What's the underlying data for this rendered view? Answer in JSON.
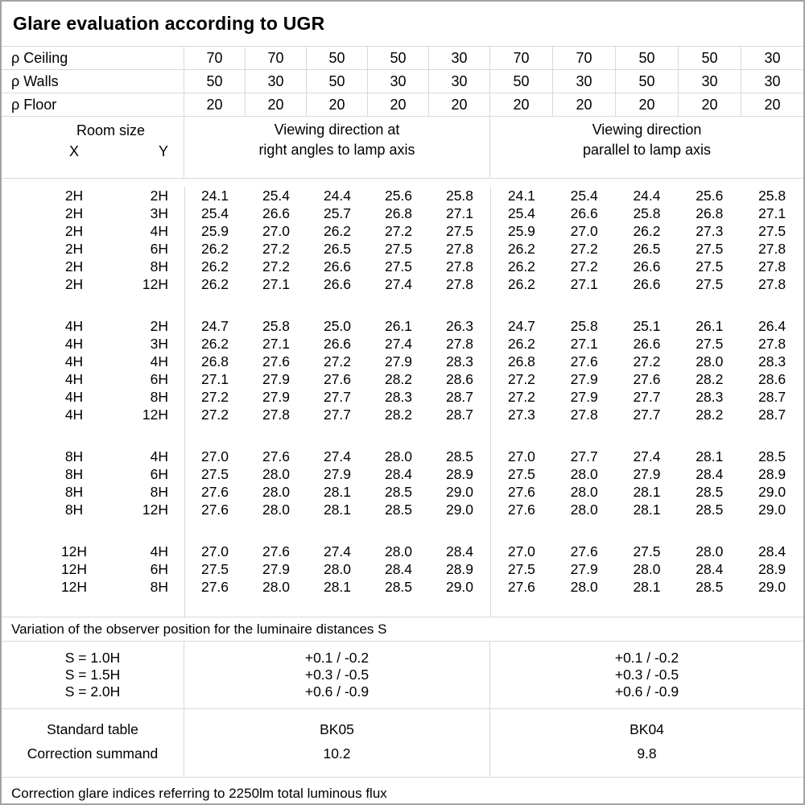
{
  "title": "Glare evaluation according to UGR",
  "colors": {
    "outer_border": "#a3a3a3",
    "grid_line": "#d9d9d9",
    "text": "#000000",
    "background": "#ffffff"
  },
  "reflectances": {
    "rows": [
      {
        "label": "ρ Ceiling",
        "values": [
          "70",
          "70",
          "50",
          "50",
          "30",
          "70",
          "70",
          "50",
          "50",
          "30"
        ]
      },
      {
        "label": "ρ Walls",
        "values": [
          "50",
          "30",
          "50",
          "30",
          "30",
          "50",
          "30",
          "50",
          "30",
          "30"
        ]
      },
      {
        "label": "ρ Floor",
        "values": [
          "20",
          "20",
          "20",
          "20",
          "20",
          "20",
          "20",
          "20",
          "20",
          "20"
        ]
      }
    ]
  },
  "header": {
    "room_size": "Room size",
    "x": "X",
    "y": "Y",
    "viewing_right_angles": {
      "line1": "Viewing direction at",
      "line2": "right angles to lamp axis"
    },
    "viewing_parallel": {
      "line1": "Viewing direction",
      "line2": "parallel to lamp axis"
    }
  },
  "ugr_table": {
    "groups": [
      {
        "rows": [
          {
            "x": "2H",
            "y": "2H",
            "values": [
              "24.1",
              "25.4",
              "24.4",
              "25.6",
              "25.8",
              "24.1",
              "25.4",
              "24.4",
              "25.6",
              "25.8"
            ]
          },
          {
            "x": "2H",
            "y": "3H",
            "values": [
              "25.4",
              "26.6",
              "25.7",
              "26.8",
              "27.1",
              "25.4",
              "26.6",
              "25.8",
              "26.8",
              "27.1"
            ]
          },
          {
            "x": "2H",
            "y": "4H",
            "values": [
              "25.9",
              "27.0",
              "26.2",
              "27.2",
              "27.5",
              "25.9",
              "27.0",
              "26.2",
              "27.3",
              "27.5"
            ]
          },
          {
            "x": "2H",
            "y": "6H",
            "values": [
              "26.2",
              "27.2",
              "26.5",
              "27.5",
              "27.8",
              "26.2",
              "27.2",
              "26.5",
              "27.5",
              "27.8"
            ]
          },
          {
            "x": "2H",
            "y": "8H",
            "values": [
              "26.2",
              "27.2",
              "26.6",
              "27.5",
              "27.8",
              "26.2",
              "27.2",
              "26.6",
              "27.5",
              "27.8"
            ]
          },
          {
            "x": "2H",
            "y": "12H",
            "values": [
              "26.2",
              "27.1",
              "26.6",
              "27.4",
              "27.8",
              "26.2",
              "27.1",
              "26.6",
              "27.5",
              "27.8"
            ]
          }
        ]
      },
      {
        "rows": [
          {
            "x": "4H",
            "y": "2H",
            "values": [
              "24.7",
              "25.8",
              "25.0",
              "26.1",
              "26.3",
              "24.7",
              "25.8",
              "25.1",
              "26.1",
              "26.4"
            ]
          },
          {
            "x": "4H",
            "y": "3H",
            "values": [
              "26.2",
              "27.1",
              "26.6",
              "27.4",
              "27.8",
              "26.2",
              "27.1",
              "26.6",
              "27.5",
              "27.8"
            ]
          },
          {
            "x": "4H",
            "y": "4H",
            "values": [
              "26.8",
              "27.6",
              "27.2",
              "27.9",
              "28.3",
              "26.8",
              "27.6",
              "27.2",
              "28.0",
              "28.3"
            ]
          },
          {
            "x": "4H",
            "y": "6H",
            "values": [
              "27.1",
              "27.9",
              "27.6",
              "28.2",
              "28.6",
              "27.2",
              "27.9",
              "27.6",
              "28.2",
              "28.6"
            ]
          },
          {
            "x": "4H",
            "y": "8H",
            "values": [
              "27.2",
              "27.9",
              "27.7",
              "28.3",
              "28.7",
              "27.2",
              "27.9",
              "27.7",
              "28.3",
              "28.7"
            ]
          },
          {
            "x": "4H",
            "y": "12H",
            "values": [
              "27.2",
              "27.8",
              "27.7",
              "28.2",
              "28.7",
              "27.3",
              "27.8",
              "27.7",
              "28.2",
              "28.7"
            ]
          }
        ]
      },
      {
        "rows": [
          {
            "x": "8H",
            "y": "4H",
            "values": [
              "27.0",
              "27.6",
              "27.4",
              "28.0",
              "28.5",
              "27.0",
              "27.7",
              "27.4",
              "28.1",
              "28.5"
            ]
          },
          {
            "x": "8H",
            "y": "6H",
            "values": [
              "27.5",
              "28.0",
              "27.9",
              "28.4",
              "28.9",
              "27.5",
              "28.0",
              "27.9",
              "28.4",
              "28.9"
            ]
          },
          {
            "x": "8H",
            "y": "8H",
            "values": [
              "27.6",
              "28.0",
              "28.1",
              "28.5",
              "29.0",
              "27.6",
              "28.0",
              "28.1",
              "28.5",
              "29.0"
            ]
          },
          {
            "x": "8H",
            "y": "12H",
            "values": [
              "27.6",
              "28.0",
              "28.1",
              "28.5",
              "29.0",
              "27.6",
              "28.0",
              "28.1",
              "28.5",
              "29.0"
            ]
          }
        ]
      },
      {
        "rows": [
          {
            "x": "12H",
            "y": "4H",
            "values": [
              "27.0",
              "27.6",
              "27.4",
              "28.0",
              "28.4",
              "27.0",
              "27.6",
              "27.5",
              "28.0",
              "28.4"
            ]
          },
          {
            "x": "12H",
            "y": "6H",
            "values": [
              "27.5",
              "27.9",
              "28.0",
              "28.4",
              "28.9",
              "27.5",
              "27.9",
              "28.0",
              "28.4",
              "28.9"
            ]
          },
          {
            "x": "12H",
            "y": "8H",
            "values": [
              "27.6",
              "28.0",
              "28.1",
              "28.5",
              "29.0",
              "27.6",
              "28.0",
              "28.1",
              "28.5",
              "29.0"
            ]
          }
        ]
      }
    ]
  },
  "s_variation": {
    "note": "Variation of the observer position for the luminaire distances S",
    "rows": [
      {
        "label": "S = 1.0H",
        "right_angles": "+0.1 / -0.2",
        "parallel": "+0.1 / -0.2"
      },
      {
        "label": "S = 1.5H",
        "right_angles": "+0.3 / -0.5",
        "parallel": "+0.3 / -0.5"
      },
      {
        "label": "S = 2.0H",
        "right_angles": "+0.6 / -0.9",
        "parallel": "+0.6 / -0.9"
      }
    ]
  },
  "standard": {
    "table_label": "Standard table",
    "summand_label": "Correction summand",
    "table_right_angles": "BK05",
    "table_parallel": "BK04",
    "summand_right_angles": "10.2",
    "summand_parallel": "9.8"
  },
  "footer_note": "Correction glare indices referring to 2250lm total luminous flux"
}
